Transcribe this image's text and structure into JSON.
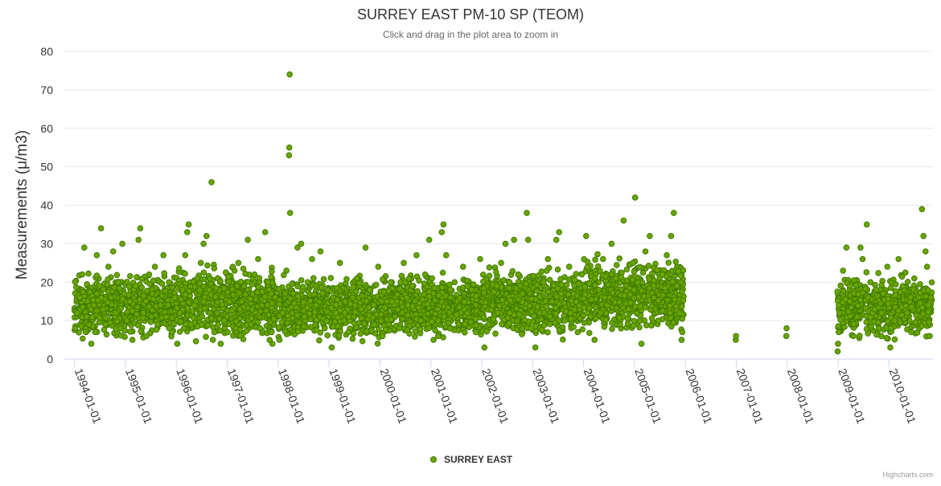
{
  "chart_data": {
    "type": "scatter",
    "title": "SURREY EAST PM-10 SP (TEOM)",
    "subtitle": "Click and drag in the plot area to zoom in",
    "ylabel": "Measurements (μ/m3)",
    "xlabel": "",
    "xlim": [
      "1993-10-20",
      "2010-11-12"
    ],
    "ylim": [
      0,
      80
    ],
    "yticks": [
      0,
      10,
      20,
      30,
      40,
      50,
      60,
      70,
      80
    ],
    "xticks": [
      "1994-01-01",
      "1995-01-01",
      "1996-01-01",
      "1997-01-01",
      "1998-01-01",
      "1999-01-01",
      "2000-01-01",
      "2001-01-01",
      "2002-01-01",
      "2003-01-01",
      "2004-01-01",
      "2005-01-01",
      "2006-01-01",
      "2007-01-01",
      "2008-01-01",
      "2009-01-01",
      "2010-01-01"
    ],
    "grid": true,
    "legend": "bottom-center",
    "credits": "Highcharts.com",
    "series": [
      {
        "name": "SURREY EAST",
        "color": "#6aa500",
        "stroke": "#3f7a00",
        "points": [
          [
            "1994-01-05",
            8
          ],
          [
            "1994-01-20",
            12
          ],
          [
            "1994-02-08",
            16
          ],
          [
            "1994-02-25",
            22
          ],
          [
            "1994-03-12",
            29
          ],
          [
            "1994-03-28",
            11
          ],
          [
            "1994-04-15",
            9
          ],
          [
            "1994-05-02",
            4
          ],
          [
            "1994-05-20",
            14
          ],
          [
            "1994-06-10",
            27
          ],
          [
            "1994-06-28",
            19
          ],
          [
            "1994-07-10",
            34
          ],
          [
            "1994-07-25",
            13
          ],
          [
            "1994-08-12",
            9
          ],
          [
            "1994-09-01",
            24
          ],
          [
            "1994-09-20",
            16
          ],
          [
            "1994-10-05",
            28
          ],
          [
            "1994-10-22",
            12
          ],
          [
            "1994-11-10",
            20
          ],
          [
            "1994-11-28",
            8
          ],
          [
            "1994-12-10",
            30
          ],
          [
            "1994-12-24",
            17
          ],
          [
            "1995-01-10",
            10
          ],
          [
            "1995-02-02",
            15
          ],
          [
            "1995-02-20",
            5
          ],
          [
            "1995-03-15",
            19
          ],
          [
            "1995-04-05",
            31
          ],
          [
            "1995-04-18",
            34
          ],
          [
            "1995-05-10",
            12
          ],
          [
            "1995-06-01",
            6
          ],
          [
            "1995-06-20",
            22
          ],
          [
            "1995-07-12",
            17
          ],
          [
            "1995-08-01",
            24
          ],
          [
            "1995-08-20",
            9
          ],
          [
            "1995-09-10",
            14
          ],
          [
            "1995-10-01",
            27
          ],
          [
            "1995-10-20",
            11
          ],
          [
            "1995-11-10",
            20
          ],
          [
            "1995-12-01",
            7
          ],
          [
            "1995-12-20",
            16
          ],
          [
            "1996-01-08",
            4
          ],
          [
            "1996-01-25",
            12
          ],
          [
            "1996-02-15",
            18
          ],
          [
            "1996-03-05",
            27
          ],
          [
            "1996-03-20",
            33
          ],
          [
            "1996-03-30",
            35
          ],
          [
            "1996-04-15",
            9
          ],
          [
            "1996-05-10",
            14
          ],
          [
            "1996-06-01",
            21
          ],
          [
            "1996-06-25",
            25
          ],
          [
            "1996-07-15",
            30
          ],
          [
            "1996-08-05",
            32
          ],
          [
            "1996-08-25",
            18
          ],
          [
            "1996-09-10",
            46
          ],
          [
            "1996-09-30",
            7
          ],
          [
            "1996-10-20",
            12
          ],
          [
            "1996-11-15",
            4
          ],
          [
            "1996-12-10",
            10
          ],
          [
            "1997-01-15",
            15
          ],
          [
            "1997-02-10",
            24
          ],
          [
            "1997-03-05",
            8
          ],
          [
            "1997-04-01",
            13
          ],
          [
            "1997-05-01",
            19
          ],
          [
            "1997-05-28",
            31
          ],
          [
            "1997-06-20",
            9
          ],
          [
            "1997-07-15",
            22
          ],
          [
            "1997-08-10",
            26
          ],
          [
            "1997-09-05",
            14
          ],
          [
            "1997-09-30",
            33
          ],
          [
            "1997-10-20",
            20
          ],
          [
            "1997-11-15",
            7
          ],
          [
            "1997-12-10",
            16
          ],
          [
            "1998-01-10",
            5
          ],
          [
            "1998-02-01",
            12
          ],
          [
            "1998-03-01",
            23
          ],
          [
            "1998-03-20",
            53
          ],
          [
            "1998-03-22",
            55
          ],
          [
            "1998-03-25",
            74
          ],
          [
            "1998-03-28",
            38
          ],
          [
            "1998-04-20",
            17
          ],
          [
            "1998-05-20",
            29
          ],
          [
            "1998-06-15",
            30
          ],
          [
            "1998-07-10",
            11
          ],
          [
            "1998-08-01",
            20
          ],
          [
            "1998-09-01",
            26
          ],
          [
            "1998-10-01",
            14
          ],
          [
            "1998-11-01",
            28
          ],
          [
            "1998-12-01",
            8
          ],
          [
            "1998-12-20",
            18
          ],
          [
            "1999-01-20",
            3
          ],
          [
            "1999-02-20",
            12
          ],
          [
            "1999-03-20",
            25
          ],
          [
            "1999-04-20",
            10
          ],
          [
            "1999-05-20",
            7
          ],
          [
            "1999-06-20",
            16
          ],
          [
            "1999-07-20",
            21
          ],
          [
            "1999-08-20",
            13
          ],
          [
            "1999-09-20",
            29
          ],
          [
            "1999-10-20",
            18
          ],
          [
            "1999-11-20",
            9
          ],
          [
            "1999-12-20",
            24
          ],
          [
            "2000-01-20",
            6
          ],
          [
            "2000-02-20",
            15
          ],
          [
            "2000-03-20",
            20
          ],
          [
            "2000-04-20",
            11
          ],
          [
            "2000-05-20",
            8
          ],
          [
            "2000-06-20",
            25
          ],
          [
            "2000-07-20",
            14
          ],
          [
            "2000-08-20",
            19
          ],
          [
            "2000-09-20",
            27
          ],
          [
            "2000-10-20",
            10
          ],
          [
            "2000-11-20",
            22
          ],
          [
            "2000-12-20",
            31
          ],
          [
            "2001-01-20",
            5
          ],
          [
            "2001-02-20",
            13
          ],
          [
            "2001-03-20",
            33
          ],
          [
            "2001-04-01",
            35
          ],
          [
            "2001-04-20",
            27
          ],
          [
            "2001-05-20",
            16
          ],
          [
            "2001-06-20",
            20
          ],
          [
            "2001-07-20",
            9
          ],
          [
            "2001-08-20",
            24
          ],
          [
            "2001-09-20",
            12
          ],
          [
            "2001-10-20",
            18
          ],
          [
            "2001-11-20",
            7
          ],
          [
            "2001-12-20",
            26
          ],
          [
            "2002-01-20",
            3
          ],
          [
            "2002-02-20",
            9
          ],
          [
            "2002-03-20",
            14
          ],
          [
            "2002-04-20",
            19
          ],
          [
            "2002-05-20",
            25
          ],
          [
            "2002-06-20",
            30
          ],
          [
            "2002-07-20",
            12
          ],
          [
            "2002-08-20",
            31
          ],
          [
            "2002-09-20",
            22
          ],
          [
            "2002-10-20",
            17
          ],
          [
            "2002-11-20",
            38
          ],
          [
            "2002-11-30",
            31
          ],
          [
            "2002-12-20",
            8
          ],
          [
            "2003-01-20",
            3
          ],
          [
            "2003-02-20",
            12
          ],
          [
            "2003-03-20",
            20
          ],
          [
            "2003-04-20",
            26
          ],
          [
            "2003-05-20",
            15
          ],
          [
            "2003-06-20",
            31
          ],
          [
            "2003-07-10",
            33
          ],
          [
            "2003-08-20",
            10
          ],
          [
            "2003-09-20",
            24
          ],
          [
            "2003-10-20",
            17
          ],
          [
            "2003-11-20",
            7
          ],
          [
            "2003-12-20",
            22
          ],
          [
            "2004-01-20",
            32
          ],
          [
            "2004-02-20",
            11
          ],
          [
            "2004-03-20",
            5
          ],
          [
            "2004-04-20",
            18
          ],
          [
            "2004-05-20",
            26
          ],
          [
            "2004-06-20",
            14
          ],
          [
            "2004-07-20",
            30
          ],
          [
            "2004-08-20",
            21
          ],
          [
            "2004-09-20",
            9
          ],
          [
            "2004-10-15",
            36
          ],
          [
            "2004-11-20",
            13
          ],
          [
            "2004-12-20",
            25
          ],
          [
            "2005-01-05",
            42
          ],
          [
            "2005-02-20",
            4
          ],
          [
            "2005-03-20",
            28
          ],
          [
            "2005-04-20",
            32
          ],
          [
            "2005-05-20",
            16
          ],
          [
            "2005-06-20",
            10
          ],
          [
            "2005-07-20",
            22
          ],
          [
            "2005-08-20",
            27
          ],
          [
            "2005-09-20",
            32
          ],
          [
            "2005-10-10",
            38
          ],
          [
            "2005-10-30",
            19
          ],
          [
            "2005-11-20",
            12
          ],
          [
            "2005-12-01",
            20
          ],
          [
            "2005-12-05",
            5
          ],
          [
            "2005-12-10",
            7
          ],
          [
            "2006-12-28",
            5
          ],
          [
            "2006-12-30",
            6
          ],
          [
            "2007-12-26",
            6
          ],
          [
            "2007-12-28",
            8
          ],
          [
            "2008-12-28",
            2
          ],
          [
            "2008-12-31",
            4
          ],
          [
            "2009-01-05",
            7
          ],
          [
            "2009-01-10",
            12
          ],
          [
            "2009-01-20",
            19
          ],
          [
            "2009-02-05",
            23
          ],
          [
            "2009-03-01",
            29
          ],
          [
            "2009-03-25",
            15
          ],
          [
            "2009-04-20",
            6
          ],
          [
            "2009-05-20",
            11
          ],
          [
            "2009-06-10",
            29
          ],
          [
            "2009-06-25",
            26
          ],
          [
            "2009-07-25",
            35
          ],
          [
            "2009-08-20",
            20
          ],
          [
            "2009-09-20",
            13
          ],
          [
            "2009-10-20",
            8
          ],
          [
            "2009-11-20",
            17
          ],
          [
            "2009-12-20",
            24
          ],
          [
            "2010-01-10",
            3
          ],
          [
            "2010-02-10",
            10
          ],
          [
            "2010-03-10",
            26
          ],
          [
            "2010-04-10",
            19
          ],
          [
            "2010-05-10",
            12
          ],
          [
            "2010-06-10",
            7
          ],
          [
            "2010-07-01",
            21
          ],
          [
            "2010-08-01",
            16
          ],
          [
            "2010-08-25",
            39
          ],
          [
            "2010-09-05",
            32
          ],
          [
            "2010-09-20",
            28
          ],
          [
            "2010-10-01",
            24
          ],
          [
            "2010-10-10",
            14
          ],
          [
            "2010-10-20",
            6
          ],
          [
            "2010-10-30",
            16
          ]
        ],
        "dense_segments": [
          {
            "from": "1994-01-01",
            "to": "1995-12-31",
            "min": 5,
            "max": 22
          },
          {
            "from": "1996-01-01",
            "to": "1997-12-31",
            "min": 4,
            "max": 24
          },
          {
            "from": "1998-01-01",
            "to": "1999-12-31",
            "min": 4,
            "max": 22
          },
          {
            "from": "2000-01-01",
            "to": "2001-12-31",
            "min": 5,
            "max": 22
          },
          {
            "from": "2002-01-01",
            "to": "2003-12-31",
            "min": 5,
            "max": 24
          },
          {
            "from": "2004-01-01",
            "to": "2005-12-20",
            "min": 6,
            "max": 26
          },
          {
            "from": "2008-12-25",
            "to": "2010-11-05",
            "min": 5,
            "max": 22
          }
        ]
      }
    ]
  }
}
